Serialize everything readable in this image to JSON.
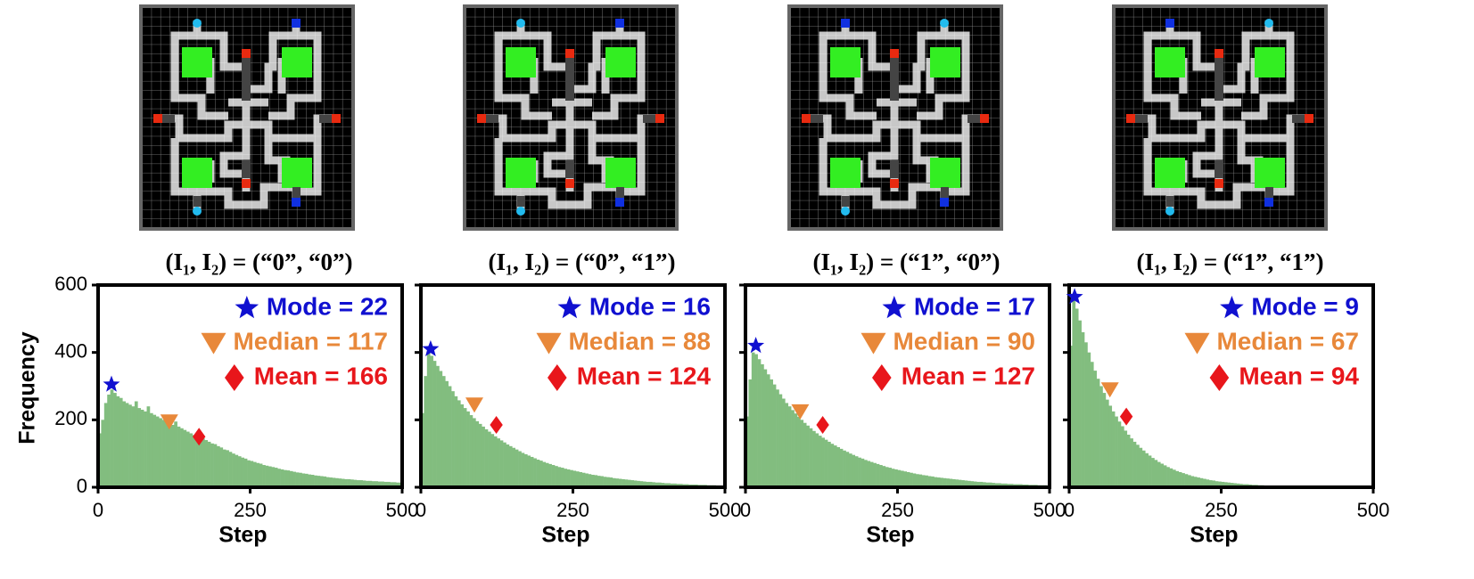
{
  "chart_data": [
    {
      "type": "histogram",
      "title": "(I₁, I₂) = (“0”, “0”)",
      "xlabel": "Step",
      "ylabel": "Frequency",
      "color": "#82bd7f",
      "xlim": [
        0,
        500
      ],
      "xticks": [
        0,
        250,
        500
      ],
      "ylim": [
        0,
        600
      ],
      "yticks": [
        0,
        200,
        400,
        600
      ],
      "bins": [
        0,
        5,
        10,
        15,
        20,
        25,
        30,
        35,
        40,
        45,
        50,
        55,
        60,
        65,
        70,
        75,
        80,
        85,
        90,
        95,
        100,
        105,
        110,
        115,
        120,
        125,
        130,
        135,
        140,
        145,
        150,
        155,
        160,
        165,
        170,
        175,
        180,
        185,
        190,
        195,
        200,
        205,
        210,
        215,
        220,
        225,
        230,
        235,
        240,
        245,
        250,
        255,
        260,
        265,
        270,
        275,
        280,
        285,
        290,
        295,
        300,
        305,
        310,
        315,
        320,
        325,
        330,
        335,
        340,
        345,
        350,
        355,
        360,
        365,
        370,
        375,
        380,
        385,
        390,
        395,
        400,
        405,
        410,
        415,
        420,
        425,
        430,
        435,
        440,
        445,
        450,
        455,
        460,
        465,
        470,
        475,
        480,
        485,
        490,
        495,
        500
      ],
      "counts": [
        160,
        200,
        250,
        275,
        290,
        280,
        270,
        265,
        255,
        250,
        245,
        240,
        255,
        235,
        230,
        225,
        240,
        220,
        215,
        210,
        205,
        200,
        210,
        190,
        185,
        195,
        180,
        175,
        170,
        165,
        160,
        155,
        150,
        158,
        145,
        140,
        135,
        130,
        128,
        122,
        118,
        112,
        110,
        105,
        100,
        96,
        92,
        88,
        85,
        80,
        78,
        75,
        72,
        70,
        66,
        64,
        62,
        60,
        58,
        55,
        53,
        51,
        50,
        48,
        46,
        44,
        43,
        41,
        40,
        38,
        37,
        35,
        34,
        33,
        32,
        30,
        29,
        28,
        27,
        26,
        25,
        24,
        24,
        23,
        22,
        21,
        21,
        20,
        19,
        19,
        18,
        18,
        17,
        17,
        16,
        16,
        15,
        15,
        14,
        14
      ],
      "stats": [
        {
          "text": "Mode = 22",
          "value": 22,
          "y": 305,
          "marker": "star",
          "color": "#1010d0"
        },
        {
          "text": "Median = 117",
          "value": 117,
          "y": 195,
          "marker": "triangle",
          "color": "#e8883a"
        },
        {
          "text": "Mean = 166",
          "value": 166,
          "y": 150,
          "marker": "diamond",
          "color": "#e8161b"
        }
      ]
    },
    {
      "type": "histogram",
      "title": "(I₁, I₂) = (“0”, “1”)",
      "xlabel": "Step",
      "color": "#82bd7f",
      "xlim": [
        0,
        500
      ],
      "xticks": [
        0,
        250,
        500
      ],
      "ylim": [
        0,
        600
      ],
      "bins": [
        0,
        5,
        10,
        15,
        20,
        25,
        30,
        35,
        40,
        45,
        50,
        55,
        60,
        65,
        70,
        75,
        80,
        85,
        90,
        95,
        100,
        105,
        110,
        115,
        120,
        125,
        130,
        135,
        140,
        145,
        150,
        155,
        160,
        165,
        170,
        175,
        180,
        185,
        190,
        195,
        200,
        205,
        210,
        215,
        220,
        225,
        230,
        235,
        240,
        245,
        250,
        255,
        260,
        265,
        270,
        275,
        280,
        285,
        290,
        295,
        300,
        305,
        310,
        315,
        320,
        325,
        330,
        335,
        340,
        345,
        350,
        355,
        360,
        365,
        370,
        375,
        380,
        385,
        390,
        395,
        400,
        405,
        410,
        415,
        420,
        425,
        430,
        435,
        440,
        445,
        450,
        455,
        460,
        465,
        470,
        475,
        480,
        485,
        490,
        495,
        500
      ],
      "counts": [
        220,
        330,
        400,
        390,
        375,
        360,
        345,
        330,
        315,
        300,
        285,
        270,
        258,
        246,
        235,
        225,
        214,
        205,
        196,
        188,
        180,
        172,
        165,
        158,
        151,
        145,
        139,
        133,
        127,
        122,
        117,
        112,
        107,
        102,
        98,
        94,
        90,
        86,
        82,
        79,
        75,
        72,
        69,
        66,
        63,
        60,
        58,
        55,
        53,
        51,
        49,
        47,
        45,
        43,
        41,
        39,
        37,
        36,
        34,
        33,
        31,
        30,
        29,
        27,
        26,
        25,
        24,
        23,
        22,
        21,
        20,
        19,
        18,
        17,
        16,
        16,
        15,
        14,
        14,
        13,
        12,
        12,
        11,
        11,
        10,
        10,
        9,
        9,
        8,
        8,
        8,
        7,
        7,
        7,
        6,
        6,
        6,
        5,
        5,
        5
      ],
      "stats": [
        {
          "text": "Mode = 16",
          "value": 16,
          "y": 410,
          "marker": "star",
          "color": "#1010d0"
        },
        {
          "text": "Median = 88",
          "value": 88,
          "y": 245,
          "marker": "triangle",
          "color": "#e8883a"
        },
        {
          "text": "Mean = 124",
          "value": 124,
          "y": 185,
          "marker": "diamond",
          "color": "#e8161b"
        }
      ]
    },
    {
      "type": "histogram",
      "title": "(I₁, I₂) = (“1”, “0”)",
      "xlabel": "Step",
      "color": "#82bd7f",
      "xlim": [
        0,
        500
      ],
      "xticks": [
        0,
        250,
        500
      ],
      "ylim": [
        0,
        600
      ],
      "bins": [
        0,
        5,
        10,
        15,
        20,
        25,
        30,
        35,
        40,
        45,
        50,
        55,
        60,
        65,
        70,
        75,
        80,
        85,
        90,
        95,
        100,
        105,
        110,
        115,
        120,
        125,
        130,
        135,
        140,
        145,
        150,
        155,
        160,
        165,
        170,
        175,
        180,
        185,
        190,
        195,
        200,
        205,
        210,
        215,
        220,
        225,
        230,
        235,
        240,
        245,
        250,
        255,
        260,
        265,
        270,
        275,
        280,
        285,
        290,
        295,
        300,
        305,
        310,
        315,
        320,
        325,
        330,
        335,
        340,
        345,
        350,
        355,
        360,
        365,
        370,
        375,
        380,
        385,
        390,
        395,
        400,
        405,
        410,
        415,
        420,
        425,
        430,
        435,
        440,
        445,
        450,
        455,
        460,
        465,
        470,
        475,
        480,
        485,
        490,
        495,
        500
      ],
      "counts": [
        210,
        320,
        400,
        395,
        380,
        365,
        350,
        335,
        320,
        305,
        290,
        276,
        263,
        250,
        240,
        229,
        219,
        209,
        200,
        191,
        183,
        175,
        167,
        160,
        153,
        147,
        141,
        135,
        129,
        124,
        119,
        114,
        109,
        105,
        100,
        96,
        92,
        88,
        85,
        81,
        78,
        75,
        72,
        69,
        66,
        63,
        60,
        58,
        55,
        53,
        51,
        49,
        47,
        45,
        43,
        41,
        39,
        38,
        36,
        35,
        33,
        32,
        30,
        29,
        28,
        27,
        26,
        25,
        24,
        23,
        22,
        21,
        20,
        19,
        18,
        17,
        16,
        16,
        15,
        14,
        14,
        13,
        12,
        12,
        11,
        11,
        10,
        10,
        9,
        9,
        9,
        8,
        8,
        7,
        7,
        7,
        6,
        6,
        6,
        5
      ],
      "stats": [
        {
          "text": "Mode = 17",
          "value": 17,
          "y": 420,
          "marker": "star",
          "color": "#1010d0"
        },
        {
          "text": "Median = 90",
          "value": 90,
          "y": 225,
          "marker": "triangle",
          "color": "#e8883a"
        },
        {
          "text": "Mean = 127",
          "value": 127,
          "y": 185,
          "marker": "diamond",
          "color": "#e8161b"
        }
      ]
    },
    {
      "type": "histogram",
      "title": "(I₁, I₂) = (“1”, “1”)",
      "xlabel": "Step",
      "color": "#82bd7f",
      "xlim": [
        0,
        500
      ],
      "xticks": [
        0,
        250,
        500
      ],
      "ylim": [
        0,
        600
      ],
      "bins": [
        0,
        5,
        10,
        15,
        20,
        25,
        30,
        35,
        40,
        45,
        50,
        55,
        60,
        65,
        70,
        75,
        80,
        85,
        90,
        95,
        100,
        105,
        110,
        115,
        120,
        125,
        130,
        135,
        140,
        145,
        150,
        155,
        160,
        165,
        170,
        175,
        180,
        185,
        190,
        195,
        200,
        205,
        210,
        215,
        220,
        225,
        230,
        235,
        240,
        245,
        250,
        255,
        260,
        265,
        270,
        275,
        280,
        285,
        290,
        295,
        300,
        305,
        310,
        315,
        320,
        325,
        330,
        335,
        340,
        345,
        350,
        355,
        360,
        365,
        370,
        375,
        380,
        385,
        390,
        395,
        400,
        405,
        410,
        415,
        420,
        425,
        430,
        435,
        440,
        445,
        450,
        455,
        460,
        465,
        470,
        475,
        480,
        485,
        490,
        495,
        500
      ],
      "counts": [
        420,
        560,
        530,
        495,
        460,
        430,
        400,
        372,
        346,
        322,
        300,
        280,
        260,
        242,
        225,
        210,
        195,
        181,
        168,
        156,
        145,
        135,
        126,
        117,
        109,
        101,
        94,
        87,
        81,
        75,
        70,
        65,
        60,
        56,
        52,
        48,
        45,
        42,
        39,
        36,
        33,
        31,
        29,
        27,
        25,
        23,
        21,
        20,
        18,
        17,
        16,
        15,
        14,
        13,
        12,
        11,
        10,
        9,
        9,
        8,
        7,
        7,
        6,
        6,
        5,
        5,
        5,
        4,
        4,
        4,
        3,
        3,
        3,
        3,
        2,
        2,
        2,
        2,
        2,
        2,
        1,
        1,
        1,
        1,
        1,
        1,
        1,
        1,
        1,
        1,
        1,
        1,
        1,
        0,
        0,
        0,
        0,
        0,
        0,
        0
      ],
      "stats": [
        {
          "text": "Mode = 9",
          "value": 9,
          "y": 565,
          "marker": "star",
          "color": "#1010d0"
        },
        {
          "text": "Median = 67",
          "value": 67,
          "y": 290,
          "marker": "triangle",
          "color": "#e8883a"
        },
        {
          "text": "Mean = 94",
          "value": 94,
          "y": 210,
          "marker": "diamond",
          "color": "#e8161b"
        }
      ]
    }
  ]
}
